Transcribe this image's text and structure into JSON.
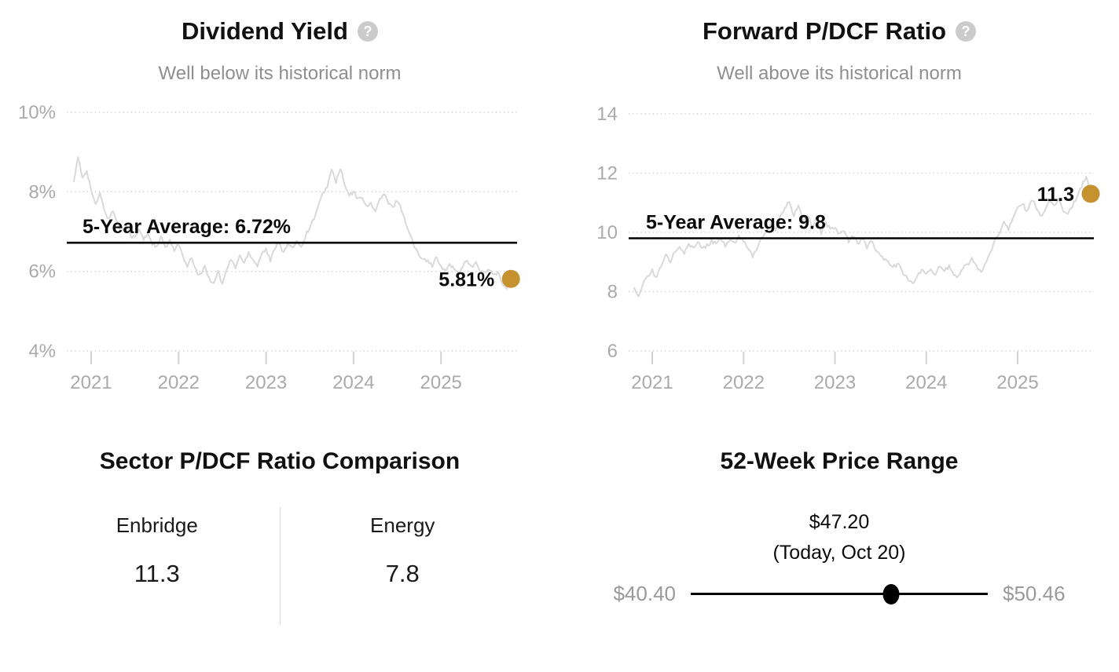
{
  "colors": {
    "accent_dot": "#c6922f",
    "series_line": "#d9d9d9",
    "average_line": "#000000",
    "grid_line": "#d6d6d6",
    "axis_text": "#aaaaaa",
    "muted_text": "#8f8f8f",
    "price_text_muted": "#9a9a9a"
  },
  "chart_data": [
    {
      "type": "line",
      "title": "Dividend Yield",
      "help_label": "?",
      "subtitle": "Well below its historical norm",
      "ylim": [
        4,
        10
      ],
      "yticks": [
        {
          "v": 10,
          "label": "10%"
        },
        {
          "v": 8,
          "label": "8%"
        },
        {
          "v": 6,
          "label": "6%"
        },
        {
          "v": 4,
          "label": "4%"
        }
      ],
      "xticks": [
        {
          "v": 2021,
          "label": "2021"
        },
        {
          "v": 2022,
          "label": "2022"
        },
        {
          "v": 2023,
          "label": "2023"
        },
        {
          "v": 2024,
          "label": "2024"
        },
        {
          "v": 2025,
          "label": "2025"
        }
      ],
      "xlim": [
        2020.78,
        2025.82
      ],
      "grid": true,
      "legend": "none",
      "average": {
        "value": 6.72,
        "label": "5-Year Average: 6.72%"
      },
      "current": {
        "value": 5.81,
        "label": "5.81%"
      },
      "series": [
        {
          "name": "Dividend Yield (%)",
          "points": [
            [
              2020.8,
              8.25
            ],
            [
              2020.85,
              8.85
            ],
            [
              2020.9,
              8.35
            ],
            [
              2020.95,
              8.55
            ],
            [
              2021.0,
              8.05
            ],
            [
              2021.05,
              7.65
            ],
            [
              2021.1,
              7.95
            ],
            [
              2021.15,
              7.55
            ],
            [
              2021.2,
              7.3
            ],
            [
              2021.25,
              7.55
            ],
            [
              2021.3,
              7.2
            ],
            [
              2021.35,
              7.0
            ],
            [
              2021.4,
              7.2
            ],
            [
              2021.45,
              6.9
            ],
            [
              2021.5,
              6.85
            ],
            [
              2021.55,
              7.05
            ],
            [
              2021.6,
              6.8
            ],
            [
              2021.65,
              6.95
            ],
            [
              2021.7,
              6.7
            ],
            [
              2021.75,
              6.6
            ],
            [
              2021.8,
              6.85
            ],
            [
              2021.85,
              6.6
            ],
            [
              2021.9,
              6.75
            ],
            [
              2021.95,
              6.55
            ],
            [
              2022.0,
              6.7
            ],
            [
              2022.05,
              6.35
            ],
            [
              2022.1,
              6.1
            ],
            [
              2022.15,
              6.35
            ],
            [
              2022.2,
              6.0
            ],
            [
              2022.25,
              5.9
            ],
            [
              2022.3,
              6.15
            ],
            [
              2022.35,
              5.8
            ],
            [
              2022.4,
              5.72
            ],
            [
              2022.45,
              6.0
            ],
            [
              2022.5,
              5.68
            ],
            [
              2022.55,
              6.05
            ],
            [
              2022.6,
              6.3
            ],
            [
              2022.65,
              6.1
            ],
            [
              2022.7,
              6.4
            ],
            [
              2022.75,
              6.2
            ],
            [
              2022.8,
              6.5
            ],
            [
              2022.85,
              6.3
            ],
            [
              2022.9,
              6.15
            ],
            [
              2022.95,
              6.45
            ],
            [
              2023.0,
              6.55
            ],
            [
              2023.05,
              6.25
            ],
            [
              2023.1,
              6.6
            ],
            [
              2023.15,
              6.75
            ],
            [
              2023.2,
              6.45
            ],
            [
              2023.25,
              6.7
            ],
            [
              2023.3,
              6.55
            ],
            [
              2023.35,
              6.8
            ],
            [
              2023.4,
              6.6
            ],
            [
              2023.45,
              6.9
            ],
            [
              2023.5,
              7.1
            ],
            [
              2023.55,
              7.35
            ],
            [
              2023.6,
              7.65
            ],
            [
              2023.65,
              7.95
            ],
            [
              2023.7,
              8.15
            ],
            [
              2023.75,
              8.55
            ],
            [
              2023.8,
              8.25
            ],
            [
              2023.85,
              8.6
            ],
            [
              2023.9,
              8.15
            ],
            [
              2023.95,
              7.9
            ],
            [
              2024.0,
              8.0
            ],
            [
              2024.05,
              7.8
            ],
            [
              2024.1,
              7.9
            ],
            [
              2024.15,
              7.6
            ],
            [
              2024.2,
              7.72
            ],
            [
              2024.25,
              7.5
            ],
            [
              2024.3,
              7.8
            ],
            [
              2024.35,
              7.95
            ],
            [
              2024.4,
              7.7
            ],
            [
              2024.45,
              7.6
            ],
            [
              2024.5,
              7.8
            ],
            [
              2024.55,
              7.55
            ],
            [
              2024.6,
              7.2
            ],
            [
              2024.65,
              6.9
            ],
            [
              2024.7,
              6.6
            ],
            [
              2024.75,
              6.4
            ],
            [
              2024.8,
              6.35
            ],
            [
              2024.85,
              6.25
            ],
            [
              2024.9,
              6.15
            ],
            [
              2024.95,
              6.35
            ],
            [
              2025.0,
              6.1
            ],
            [
              2025.05,
              6.0
            ],
            [
              2025.1,
              6.2
            ],
            [
              2025.15,
              6.05
            ],
            [
              2025.2,
              5.95
            ],
            [
              2025.25,
              6.15
            ],
            [
              2025.3,
              6.3
            ],
            [
              2025.35,
              6.1
            ],
            [
              2025.4,
              6.2
            ],
            [
              2025.45,
              6.0
            ],
            [
              2025.5,
              5.95
            ],
            [
              2025.55,
              6.05
            ],
            [
              2025.6,
              5.9
            ],
            [
              2025.65,
              5.95
            ],
            [
              2025.7,
              5.7
            ],
            [
              2025.75,
              5.6
            ],
            [
              2025.8,
              5.81
            ]
          ]
        }
      ]
    },
    {
      "type": "line",
      "title": "Forward P/DCF Ratio",
      "help_label": "?",
      "subtitle": "Well above its historical norm",
      "ylim": [
        6,
        14
      ],
      "yticks": [
        {
          "v": 14,
          "label": "14"
        },
        {
          "v": 12,
          "label": "12"
        },
        {
          "v": 10,
          "label": "10"
        },
        {
          "v": 8,
          "label": "8"
        },
        {
          "v": 6,
          "label": "6"
        }
      ],
      "xticks": [
        {
          "v": 2021,
          "label": "2021"
        },
        {
          "v": 2022,
          "label": "2022"
        },
        {
          "v": 2023,
          "label": "2023"
        },
        {
          "v": 2024,
          "label": "2024"
        },
        {
          "v": 2025,
          "label": "2025"
        }
      ],
      "xlim": [
        2020.78,
        2025.82
      ],
      "grid": true,
      "legend": "none",
      "average": {
        "value": 9.8,
        "label": "5-Year Average: 9.8"
      },
      "current": {
        "value": 11.3,
        "label": "11.3"
      },
      "series": [
        {
          "name": "Forward P/DCF Ratio",
          "points": [
            [
              2020.8,
              8.15
            ],
            [
              2020.85,
              7.88
            ],
            [
              2020.9,
              8.3
            ],
            [
              2020.95,
              8.5
            ],
            [
              2021.0,
              8.7
            ],
            [
              2021.05,
              8.5
            ],
            [
              2021.1,
              8.9
            ],
            [
              2021.15,
              9.25
            ],
            [
              2021.2,
              9.0
            ],
            [
              2021.25,
              9.4
            ],
            [
              2021.3,
              9.55
            ],
            [
              2021.35,
              9.3
            ],
            [
              2021.4,
              9.6
            ],
            [
              2021.45,
              9.45
            ],
            [
              2021.5,
              9.7
            ],
            [
              2021.55,
              9.45
            ],
            [
              2021.6,
              9.55
            ],
            [
              2021.65,
              9.7
            ],
            [
              2021.7,
              9.6
            ],
            [
              2021.75,
              9.8
            ],
            [
              2021.8,
              9.55
            ],
            [
              2021.85,
              9.7
            ],
            [
              2021.9,
              9.6
            ],
            [
              2021.95,
              9.85
            ],
            [
              2022.0,
              9.7
            ],
            [
              2022.05,
              9.4
            ],
            [
              2022.1,
              9.2
            ],
            [
              2022.15,
              9.5
            ],
            [
              2022.2,
              9.8
            ],
            [
              2022.25,
              10.0
            ],
            [
              2022.3,
              10.3
            ],
            [
              2022.35,
              10.1
            ],
            [
              2022.4,
              10.5
            ],
            [
              2022.45,
              10.8
            ],
            [
              2022.5,
              11.05
            ],
            [
              2022.55,
              10.6
            ],
            [
              2022.6,
              10.9
            ],
            [
              2022.65,
              10.4
            ],
            [
              2022.7,
              10.6
            ],
            [
              2022.75,
              10.2
            ],
            [
              2022.8,
              10.45
            ],
            [
              2022.85,
              10.0
            ],
            [
              2022.9,
              10.3
            ],
            [
              2022.95,
              10.1
            ],
            [
              2023.0,
              10.2
            ],
            [
              2023.05,
              9.9
            ],
            [
              2023.1,
              10.1
            ],
            [
              2023.15,
              9.7
            ],
            [
              2023.2,
              9.9
            ],
            [
              2023.25,
              9.6
            ],
            [
              2023.3,
              9.8
            ],
            [
              2023.35,
              9.5
            ],
            [
              2023.4,
              9.7
            ],
            [
              2023.45,
              9.4
            ],
            [
              2023.5,
              9.2
            ],
            [
              2023.55,
              9.1
            ],
            [
              2023.6,
              8.9
            ],
            [
              2023.65,
              8.85
            ],
            [
              2023.7,
              8.95
            ],
            [
              2023.75,
              8.6
            ],
            [
              2023.8,
              8.45
            ],
            [
              2023.85,
              8.25
            ],
            [
              2023.9,
              8.55
            ],
            [
              2023.95,
              8.7
            ],
            [
              2024.0,
              8.6
            ],
            [
              2024.05,
              8.75
            ],
            [
              2024.1,
              8.6
            ],
            [
              2024.15,
              8.9
            ],
            [
              2024.2,
              8.7
            ],
            [
              2024.25,
              8.85
            ],
            [
              2024.3,
              8.6
            ],
            [
              2024.35,
              8.5
            ],
            [
              2024.4,
              8.8
            ],
            [
              2024.45,
              8.9
            ],
            [
              2024.5,
              9.1
            ],
            [
              2024.55,
              8.85
            ],
            [
              2024.6,
              8.7
            ],
            [
              2024.65,
              8.95
            ],
            [
              2024.7,
              9.3
            ],
            [
              2024.75,
              9.7
            ],
            [
              2024.8,
              10.0
            ],
            [
              2024.85,
              10.3
            ],
            [
              2024.9,
              10.1
            ],
            [
              2024.95,
              10.5
            ],
            [
              2025.0,
              10.8
            ],
            [
              2025.05,
              11.0
            ],
            [
              2025.1,
              10.7
            ],
            [
              2025.15,
              11.1
            ],
            [
              2025.2,
              10.9
            ],
            [
              2025.25,
              10.5
            ],
            [
              2025.3,
              10.8
            ],
            [
              2025.35,
              11.0
            ],
            [
              2025.4,
              10.9
            ],
            [
              2025.45,
              11.1
            ],
            [
              2025.5,
              10.7
            ],
            [
              2025.55,
              10.6
            ],
            [
              2025.6,
              10.9
            ],
            [
              2025.65,
              11.2
            ],
            [
              2025.7,
              11.55
            ],
            [
              2025.75,
              11.9
            ],
            [
              2025.8,
              11.3
            ]
          ]
        }
      ]
    }
  ],
  "sections": {
    "sector_comparison": {
      "title": "Sector P/DCF Ratio Comparison",
      "columns": [
        {
          "label": "Enbridge",
          "value": "11.3"
        },
        {
          "label": "Energy",
          "value": "7.8"
        }
      ]
    },
    "price_range": {
      "title": "52-Week Price Range",
      "current_price": "$47.20",
      "current_label": "(Today, Oct 20)",
      "low": "$40.40",
      "high": "$50.46",
      "position_pct": 67.5
    }
  }
}
